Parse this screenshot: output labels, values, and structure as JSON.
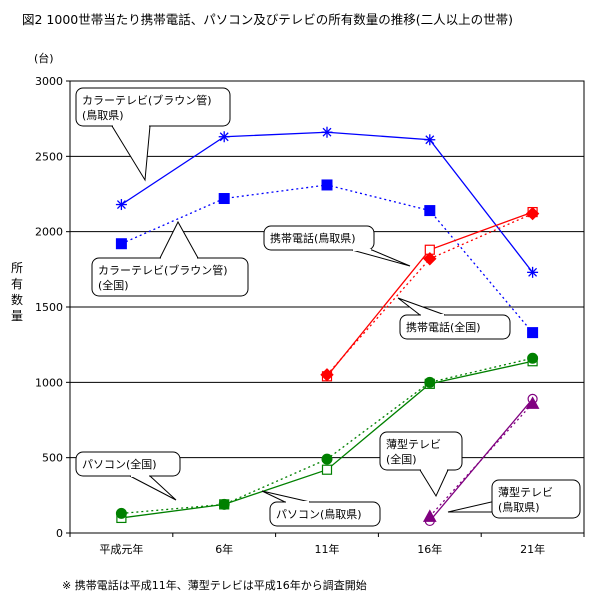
{
  "chart_data": {
    "type": "line",
    "title": "図2  1000世帯当たり携帯電話、パソコン及びテレビの所有数量の推移(二人以上の世帯)",
    "unit_label": "(台)",
    "ylabel": "所有数量",
    "ylim": [
      0,
      3000
    ],
    "yticks": [
      0,
      500,
      1000,
      1500,
      2000,
      2500,
      3000
    ],
    "grid": true,
    "categories": [
      "平成元年",
      "6年",
      "11年",
      "16年",
      "21年"
    ],
    "footnote": "※ 携帯電話は平成11年、薄型テレビは平成16年から調査開始",
    "series": [
      {
        "name": "カラーテレビ(ブラウン管)(鳥取県)",
        "color": "#0000ff",
        "dash": "solid",
        "marker": "asterisk",
        "values": [
          2180,
          2630,
          2660,
          2610,
          1730
        ]
      },
      {
        "name": "カラーテレビ(ブラウン管)(全国)",
        "color": "#0000ff",
        "dash": "dotted",
        "marker": "square-filled",
        "values": [
          1920,
          2220,
          2310,
          2140,
          1330
        ]
      },
      {
        "name": "携帯電話(鳥取県)",
        "color": "#ff0000",
        "dash": "solid",
        "marker": "square-open",
        "values": [
          null,
          null,
          1040,
          1880,
          2130
        ]
      },
      {
        "name": "携帯電話(全国)",
        "color": "#ff0000",
        "dash": "dotted",
        "marker": "diamond-filled",
        "values": [
          null,
          null,
          1050,
          1820,
          2120
        ]
      },
      {
        "name": "パソコン(鳥取県)",
        "color": "#008000",
        "dash": "solid",
        "marker": "square-open",
        "values": [
          100,
          190,
          420,
          990,
          1140
        ]
      },
      {
        "name": "パソコン(全国)",
        "color": "#008000",
        "dash": "dotted",
        "marker": "circle-filled",
        "values": [
          130,
          190,
          490,
          1000,
          1160
        ]
      },
      {
        "name": "薄型テレビ(鳥取県)",
        "color": "#800080",
        "dash": "solid",
        "marker": "circle-open",
        "values": [
          null,
          null,
          null,
          80,
          890
        ]
      },
      {
        "name": "薄型テレビ(全国)",
        "color": "#800080",
        "dash": "dotted",
        "marker": "triangle-filled",
        "values": [
          null,
          null,
          null,
          110,
          860
        ]
      }
    ],
    "callouts": [
      {
        "lines": [
          "カラーテレビ(ブラウン管)",
          "(鳥取県)"
        ]
      },
      {
        "lines": [
          "カラーテレビ(ブラウン管)",
          "(全国)"
        ]
      },
      {
        "lines": [
          "携帯電話(鳥取県)"
        ]
      },
      {
        "lines": [
          "携帯電話(全国)"
        ]
      },
      {
        "lines": [
          "パソコン(全国)"
        ]
      },
      {
        "lines": [
          "パソコン(鳥取県)"
        ]
      },
      {
        "lines": [
          "薄型テレビ",
          "(全国)"
        ]
      },
      {
        "lines": [
          "薄型テレビ",
          "(鳥取県)"
        ]
      }
    ]
  }
}
